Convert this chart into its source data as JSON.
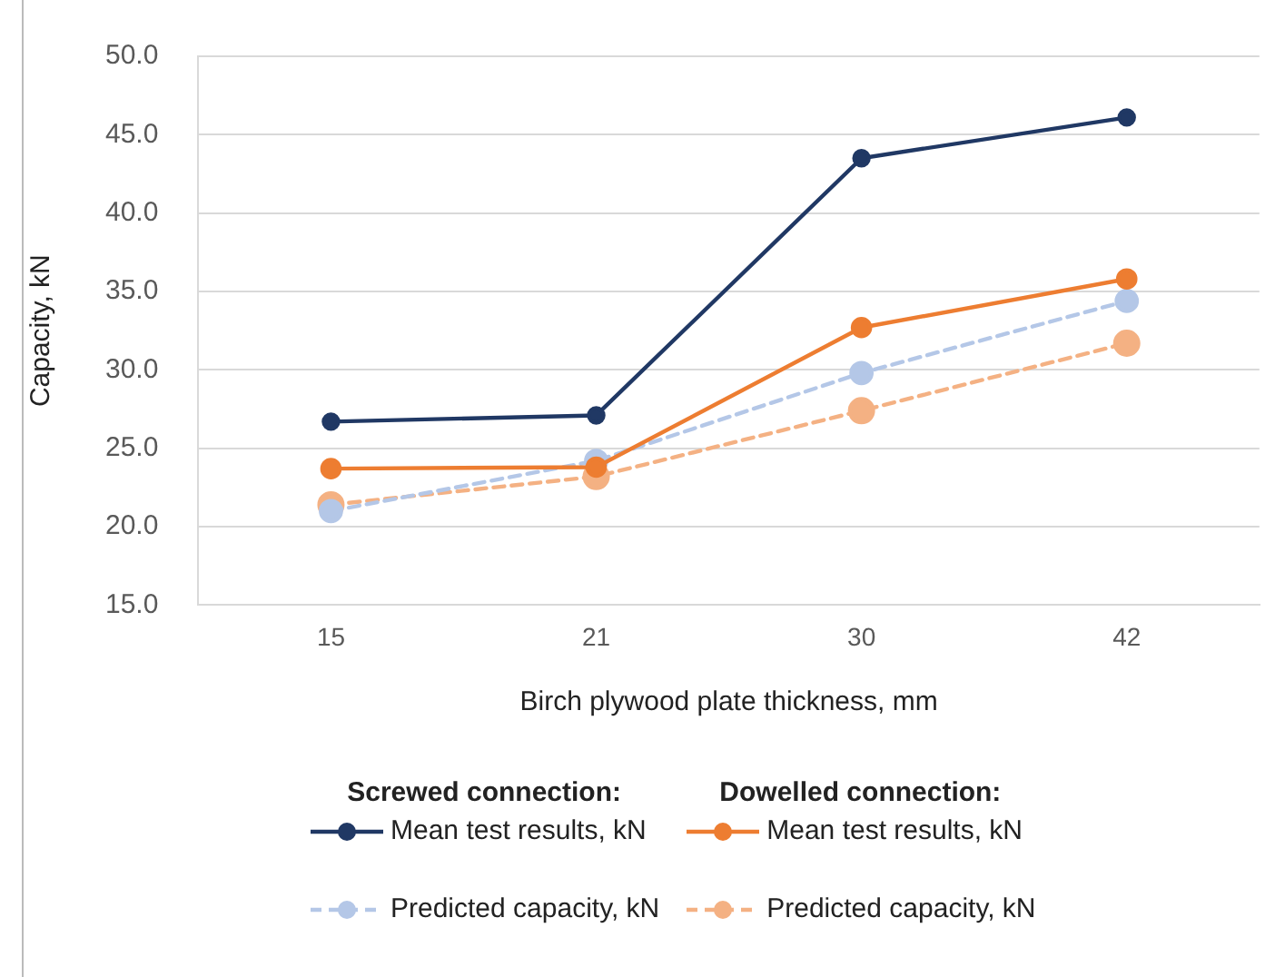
{
  "chart_data": {
    "type": "line",
    "xlabel": "Birch plywood plate thickness, mm",
    "ylabel": "Capacity, kN",
    "categories": [
      "15",
      "21",
      "30",
      "42"
    ],
    "ylim": [
      15,
      50
    ],
    "yticks": [
      {
        "value": 15,
        "label": "15.0"
      },
      {
        "value": 20,
        "label": "20.0"
      },
      {
        "value": 25,
        "label": "25.0"
      },
      {
        "value": 30,
        "label": "30.0"
      },
      {
        "value": 35,
        "label": "35.0"
      },
      {
        "value": 40,
        "label": "40.0"
      },
      {
        "value": 45,
        "label": "45.0"
      },
      {
        "value": 50,
        "label": "50.0"
      }
    ],
    "grid": "y",
    "legend": "bottom",
    "marker": "circle",
    "annotations": [
      "Screwed connection:",
      "Dowelled connection:"
    ],
    "series": [
      {
        "name": "Mean test results, kN",
        "color": "#203864",
        "line_style": "solid",
        "values": [
          26.7,
          27.1,
          43.5,
          46.1
        ]
      },
      {
        "name": "Mean test results, kN",
        "color": "#ed7d31",
        "line_style": "solid",
        "values": [
          23.7,
          23.8,
          32.7,
          35.8
        ]
      },
      {
        "name": "Predicted capacity, kN",
        "color": "#b4c7e7",
        "line_style": "dashed",
        "values": [
          21.0,
          24.2,
          29.8,
          34.4
        ]
      },
      {
        "name": "Predicted capacity, kN",
        "color": "#f4b183",
        "line_style": "dashed",
        "values": [
          21.4,
          23.2,
          27.4,
          31.7
        ]
      }
    ]
  }
}
